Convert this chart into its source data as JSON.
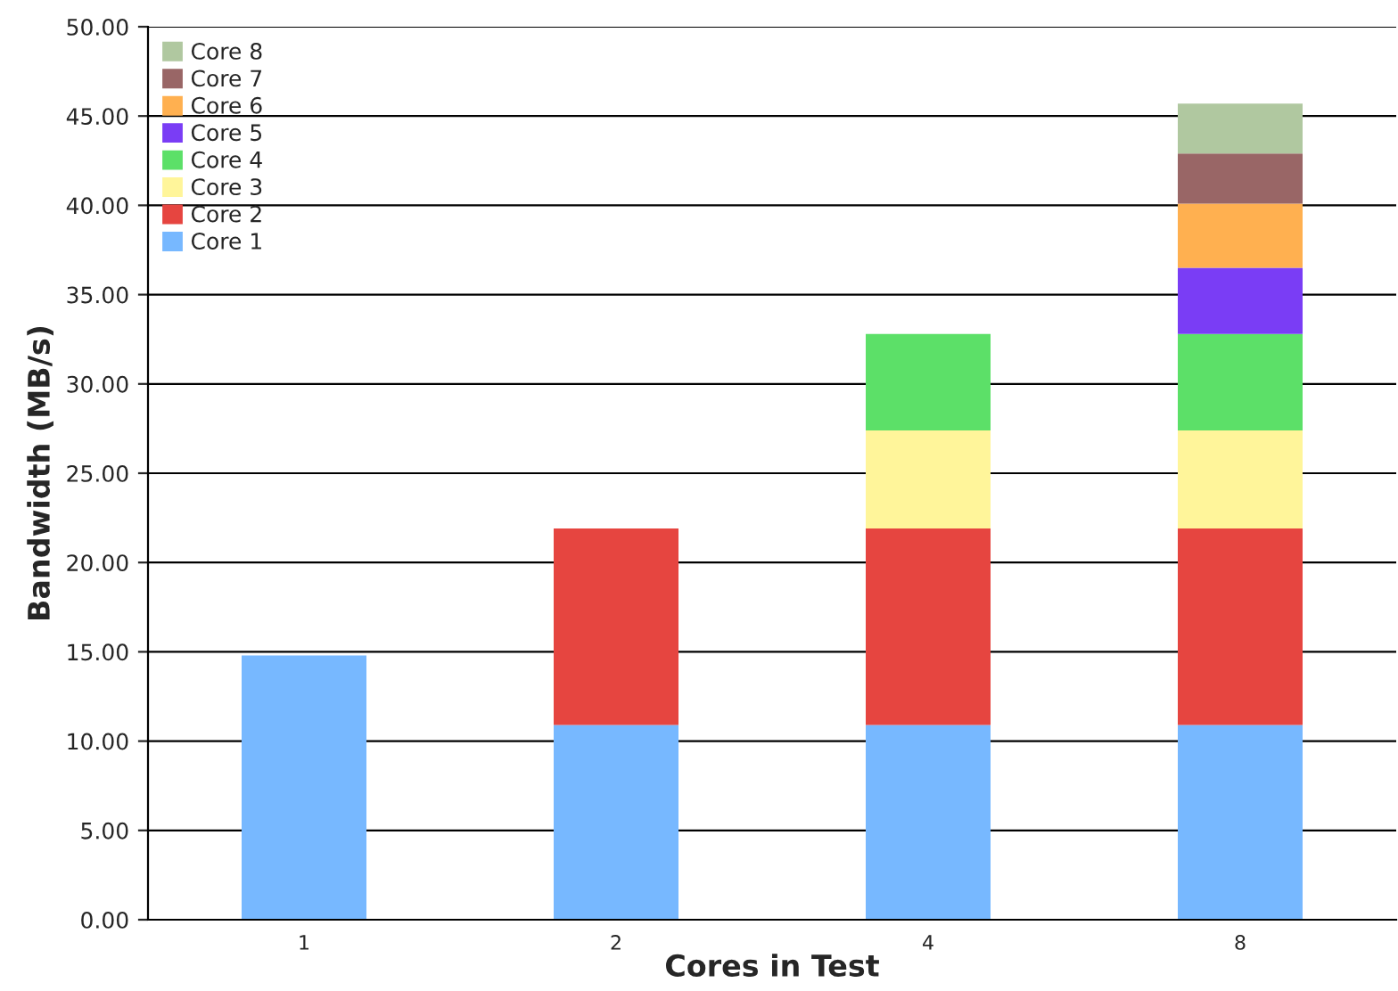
{
  "chart_data": {
    "type": "bar",
    "stacked": true,
    "xlabel": "Cores in Test",
    "ylabel": "Bandwidth (MB/s)",
    "categories": [
      "1",
      "2",
      "4",
      "8"
    ],
    "series": [
      {
        "name": "Core 1",
        "color": "#77b8ff",
        "values": [
          14.8,
          10.9,
          10.9,
          10.9
        ]
      },
      {
        "name": "Core 2",
        "color": "#e64540",
        "values": [
          null,
          11.0,
          11.0,
          11.0
        ]
      },
      {
        "name": "Core 3",
        "color": "#fff59a",
        "values": [
          null,
          null,
          5.5,
          5.5
        ]
      },
      {
        "name": "Core 4",
        "color": "#5ce068",
        "values": [
          null,
          null,
          5.4,
          5.4
        ]
      },
      {
        "name": "Core 5",
        "color": "#7a3df5",
        "values": [
          null,
          null,
          null,
          3.7
        ]
      },
      {
        "name": "Core 6",
        "color": "#ffb050",
        "values": [
          null,
          null,
          null,
          3.6
        ]
      },
      {
        "name": "Core 7",
        "color": "#996666",
        "values": [
          null,
          null,
          null,
          2.8
        ]
      },
      {
        "name": "Core 8",
        "color": "#b0c8a0",
        "values": [
          null,
          null,
          null,
          2.8
        ]
      }
    ],
    "ylim": [
      0,
      50
    ],
    "yticks": [
      {
        "value": 0,
        "label": "0.00"
      },
      {
        "value": 5,
        "label": "5.00"
      },
      {
        "value": 10,
        "label": "10.00"
      },
      {
        "value": 15,
        "label": "15.00"
      },
      {
        "value": 20,
        "label": "20.00"
      },
      {
        "value": 25,
        "label": "25.00"
      },
      {
        "value": 30,
        "label": "30.00"
      },
      {
        "value": 35,
        "label": "35.00"
      },
      {
        "value": 40,
        "label": "40.00"
      },
      {
        "value": 45,
        "label": "45.00"
      },
      {
        "value": 50,
        "label": "50.00"
      }
    ],
    "grid": "y",
    "legend": "top left"
  }
}
